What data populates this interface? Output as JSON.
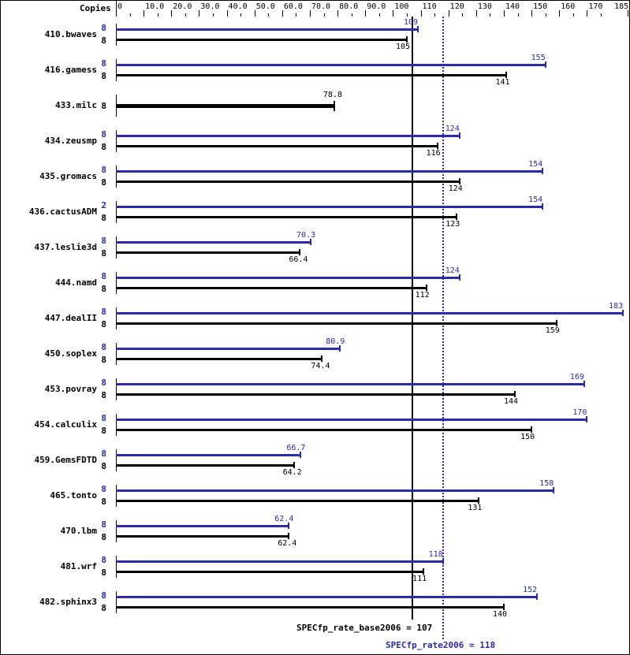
{
  "chart_data": {
    "type": "bar",
    "orientation": "horizontal",
    "title": "",
    "xlabel": "",
    "ylabel": "Copies",
    "xlim": [
      0,
      185
    ],
    "grid": false,
    "axis_ticks": [
      "0",
      "10.0",
      "20.0",
      "30.0",
      "40.0",
      "50.0",
      "60.0",
      "70.0",
      "80.0",
      "90.0",
      "100",
      "110",
      "120",
      "130",
      "140",
      "150",
      "160",
      "170",
      "185"
    ],
    "tick_values": [
      0,
      10,
      20,
      30,
      40,
      50,
      60,
      70,
      80,
      90,
      100,
      110,
      120,
      130,
      140,
      150,
      160,
      170,
      185
    ],
    "categories": [
      "410.bwaves",
      "416.gamess",
      "433.milc",
      "434.zeusmp",
      "435.gromacs",
      "436.cactusADM",
      "437.leslie3d",
      "444.namd",
      "447.dealII",
      "450.soplex",
      "453.povray",
      "454.calculix",
      "459.GemsFDTD",
      "465.tonto",
      "470.lbm",
      "481.wrf",
      "482.sphinx3"
    ],
    "series": [
      {
        "name": "SPECfp_rate2006 (peak)",
        "color": "#2b2ba8",
        "copies": [
          "8",
          "8",
          null,
          "8",
          "8",
          "2",
          "8",
          "8",
          "8",
          "8",
          "8",
          "8",
          "8",
          "8",
          "8",
          "8",
          "8"
        ],
        "values": [
          109,
          155,
          null,
          124,
          154,
          154,
          70.3,
          124,
          183,
          80.9,
          169,
          170,
          66.7,
          158,
          62.4,
          118,
          152
        ],
        "labels": [
          "109",
          "155",
          null,
          "124",
          "154",
          "154",
          "70.3",
          "124",
          "183",
          "80.9",
          "169",
          "170",
          "66.7",
          "158",
          "62.4",
          "118",
          "152"
        ]
      },
      {
        "name": "SPECfp_rate_base2006 (base)",
        "color": "#000000",
        "copies": [
          "8",
          "8",
          "8",
          "8",
          "8",
          "8",
          "8",
          "8",
          "8",
          "8",
          "8",
          "8",
          "8",
          "8",
          "8",
          "8",
          "8"
        ],
        "values": [
          105,
          141,
          78.8,
          116,
          124,
          123,
          66.4,
          112,
          159,
          74.4,
          144,
          150,
          64.2,
          131,
          62.4,
          111,
          140
        ],
        "labels": [
          "105",
          "141",
          "78.8",
          "116",
          "124",
          "123",
          "66.4",
          "112",
          "159",
          "74.4",
          "144",
          "150",
          "64.2",
          "131",
          "62.4",
          "111",
          "140"
        ]
      }
    ],
    "reference_lines": [
      {
        "name": "SPECfp_rate_base2006",
        "value": 107,
        "style": "solid",
        "color": "#000000"
      },
      {
        "name": "SPECfp_rate2006",
        "value": 118,
        "style": "dotted",
        "color": "#2b2ba8"
      }
    ],
    "annotations": [
      "SPECfp_rate_base2006 = 107",
      "SPECfp_rate2006 = 118"
    ]
  },
  "header": {
    "copies_label": "Copies"
  },
  "summary": {
    "base_text": "SPECfp_rate_base2006 = 107",
    "peak_text": "SPECfp_rate2006 = 118"
  }
}
